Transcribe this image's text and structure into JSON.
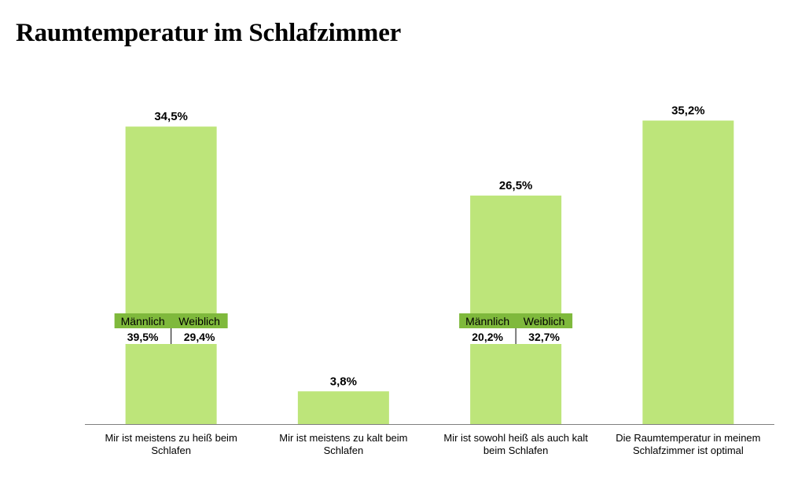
{
  "chart_data": {
    "type": "bar",
    "title": "Raumtemperatur im Schlafzimmer",
    "categories": [
      [
        "Mir ist meistens zu heiß beim",
        "Schlafen"
      ],
      [
        "Mir ist meistens zu kalt beim",
        "Schlafen"
      ],
      [
        "Mir ist sowohl heiß als auch kalt",
        "beim Schlafen"
      ],
      [
        "Die Raumtemperatur in meinem",
        "Schlafzimmer ist optimal"
      ]
    ],
    "values": [
      34.5,
      3.8,
      26.5,
      35.2
    ],
    "value_labels": [
      "34,5%",
      "3,8%",
      "26,5%",
      "35,2%"
    ],
    "ylim": [
      0,
      40
    ],
    "grid": false,
    "breakdowns": [
      {
        "category_index": 0,
        "headers": [
          "Männlich",
          "Weiblich"
        ],
        "values": [
          39.5,
          29.4
        ],
        "value_labels": [
          "39,5%",
          "29,4%"
        ]
      },
      {
        "category_index": 2,
        "headers": [
          "Männlich",
          "Weiblich"
        ],
        "values": [
          20.2,
          32.7
        ],
        "value_labels": [
          "20,2%",
          "32,7%"
        ]
      }
    ],
    "colors": {
      "bar": "#bde57a",
      "breakdown_header": "#7fb93c",
      "axis": "#7f7f7f"
    }
  }
}
